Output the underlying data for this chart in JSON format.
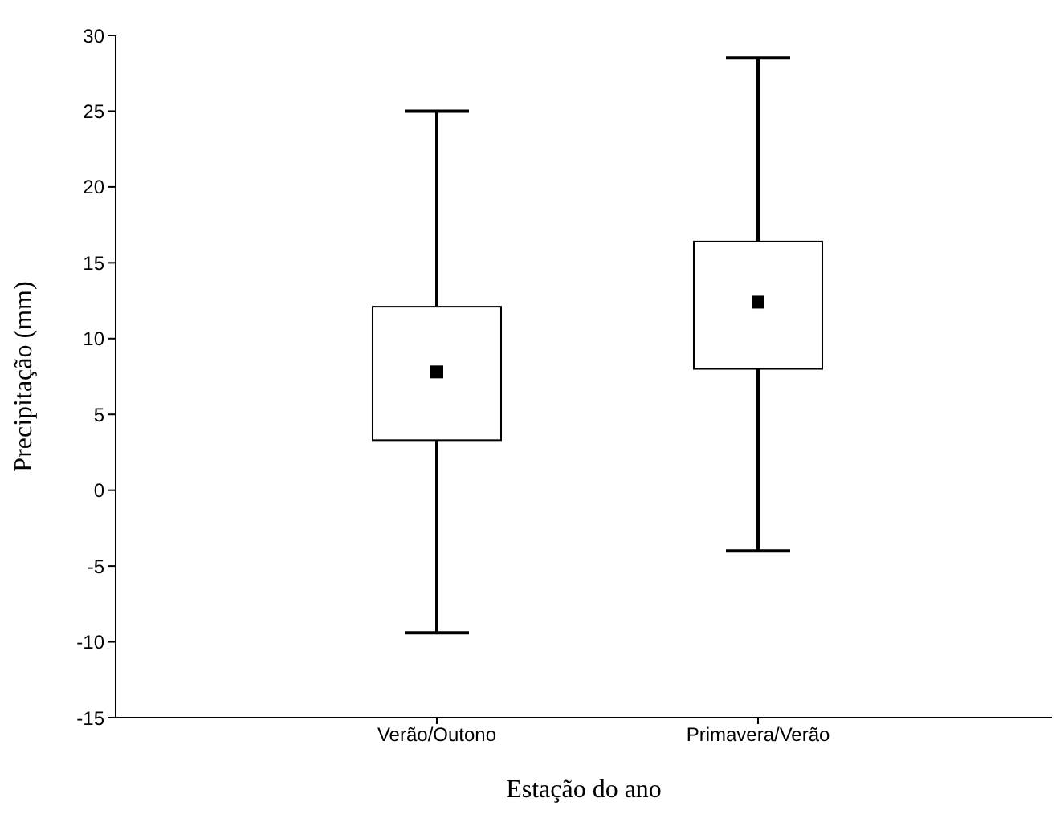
{
  "chart_data": {
    "type": "box",
    "xlabel": "Estação do ano",
    "ylabel": "Precipitação (mm)",
    "categories": [
      "Verão/Outono",
      "Primavera/Verão"
    ],
    "boxes": [
      {
        "low": -9.4,
        "q1": 3.3,
        "median": 7.8,
        "q3": 12.1,
        "high": 25
      },
      {
        "low": -4,
        "q1": 8,
        "median": 12.4,
        "q3": 16.4,
        "high": 28.5
      }
    ],
    "color": "#000000",
    "marker": "square",
    "ylim": [
      -15,
      30
    ],
    "yticks": [
      -15,
      -10,
      -5,
      0,
      5,
      10,
      15,
      20,
      25,
      30
    ],
    "grid": false,
    "legend": false
  }
}
